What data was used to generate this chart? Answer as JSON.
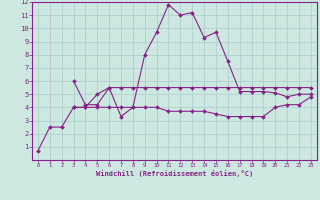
{
  "xlabel": "Windchill (Refroidissement éolien,°C)",
  "x": [
    0,
    1,
    2,
    3,
    4,
    5,
    6,
    7,
    8,
    9,
    10,
    11,
    12,
    13,
    14,
    15,
    16,
    17,
    18,
    19,
    20,
    21,
    22,
    23
  ],
  "line1": [
    0.7,
    2.5,
    2.5,
    4.0,
    4.0,
    5.0,
    5.5,
    3.3,
    4.0,
    8.0,
    9.7,
    11.8,
    11.0,
    11.2,
    9.3,
    9.7,
    7.5,
    5.2,
    5.2,
    5.2,
    5.1,
    4.8,
    5.0,
    5.0
  ],
  "line2": [
    null,
    null,
    null,
    6.0,
    4.2,
    4.2,
    5.5,
    5.5,
    5.5,
    5.5,
    5.5,
    5.5,
    5.5,
    5.5,
    5.5,
    5.5,
    5.5,
    5.5,
    5.5,
    5.5,
    5.5,
    5.5,
    5.5,
    5.5
  ],
  "line3": [
    null,
    null,
    null,
    4.0,
    4.0,
    4.0,
    4.0,
    4.0,
    4.0,
    4.0,
    4.0,
    3.7,
    3.7,
    3.7,
    3.7,
    3.5,
    3.3,
    3.3,
    3.3,
    3.3,
    4.0,
    4.2,
    4.2,
    4.8
  ],
  "bg_color": "#cce8e0",
  "grid_color": "#aacccc",
  "line_color": "#882288",
  "xlim": [
    -0.5,
    23.5
  ],
  "ylim": [
    0,
    12
  ],
  "xticks": [
    0,
    1,
    2,
    3,
    4,
    5,
    6,
    7,
    8,
    9,
    10,
    11,
    12,
    13,
    14,
    15,
    16,
    17,
    18,
    19,
    20,
    21,
    22,
    23
  ],
  "yticks": [
    1,
    2,
    3,
    4,
    5,
    6,
    7,
    8,
    9,
    10,
    11,
    12
  ]
}
